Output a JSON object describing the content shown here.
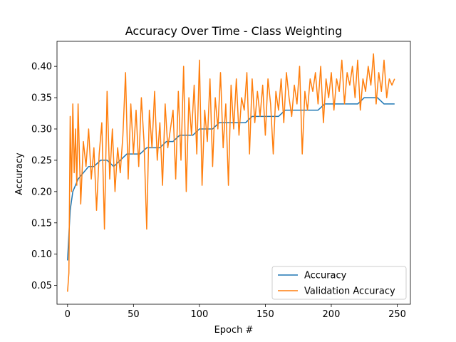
{
  "chart_data": {
    "type": "line",
    "title": "Accuracy Over Time - Class Weighting",
    "xlabel": "Epoch #",
    "ylabel": "Accuracy",
    "xlim": [
      -8,
      260
    ],
    "ylim": [
      0.02,
      0.44
    ],
    "xticks": [
      0,
      50,
      100,
      150,
      200,
      250
    ],
    "yticks": [
      0.05,
      0.1,
      0.15,
      0.2,
      0.25,
      0.3,
      0.35,
      0.4
    ],
    "ytick_labels": [
      "0.05",
      "0.10",
      "0.15",
      "0.20",
      "0.25",
      "0.30",
      "0.35",
      "0.40"
    ],
    "xtick_labels": [
      "0",
      "50",
      "100",
      "150",
      "200",
      "250"
    ],
    "grid": false,
    "legend_position": "lower-right",
    "series": [
      {
        "name": "Accuracy",
        "color": "#1f77b4",
        "x": [
          0,
          2,
          4,
          8,
          12,
          16,
          20,
          25,
          30,
          35,
          40,
          45,
          50,
          55,
          60,
          65,
          70,
          75,
          80,
          85,
          90,
          95,
          100,
          105,
          110,
          115,
          120,
          125,
          130,
          135,
          140,
          145,
          150,
          155,
          160,
          165,
          170,
          175,
          180,
          185,
          190,
          195,
          200,
          205,
          210,
          215,
          220,
          225,
          230,
          235,
          240,
          245,
          248
        ],
        "y": [
          0.09,
          0.17,
          0.2,
          0.22,
          0.23,
          0.24,
          0.24,
          0.25,
          0.25,
          0.24,
          0.25,
          0.26,
          0.26,
          0.26,
          0.27,
          0.27,
          0.27,
          0.28,
          0.28,
          0.29,
          0.29,
          0.29,
          0.3,
          0.3,
          0.3,
          0.31,
          0.31,
          0.31,
          0.31,
          0.31,
          0.32,
          0.32,
          0.32,
          0.32,
          0.32,
          0.33,
          0.33,
          0.33,
          0.33,
          0.33,
          0.33,
          0.34,
          0.34,
          0.34,
          0.34,
          0.34,
          0.34,
          0.35,
          0.35,
          0.35,
          0.34,
          0.34,
          0.34
        ]
      },
      {
        "name": "Validation Accuracy",
        "color": "#ff7f0e",
        "x": [
          0,
          1,
          2,
          3,
          4,
          5,
          6,
          7,
          8,
          10,
          12,
          14,
          16,
          18,
          20,
          22,
          24,
          26,
          28,
          30,
          32,
          34,
          36,
          38,
          40,
          42,
          44,
          46,
          48,
          50,
          52,
          54,
          56,
          58,
          60,
          62,
          64,
          66,
          68,
          70,
          72,
          74,
          76,
          78,
          80,
          82,
          84,
          86,
          88,
          90,
          92,
          94,
          96,
          98,
          100,
          102,
          104,
          106,
          108,
          110,
          112,
          114,
          116,
          118,
          120,
          122,
          124,
          126,
          128,
          130,
          132,
          134,
          136,
          138,
          140,
          142,
          144,
          146,
          148,
          150,
          152,
          154,
          156,
          158,
          160,
          162,
          164,
          166,
          168,
          170,
          172,
          174,
          176,
          178,
          180,
          182,
          184,
          186,
          188,
          190,
          192,
          194,
          196,
          198,
          200,
          202,
          204,
          206,
          208,
          210,
          212,
          214,
          216,
          218,
          220,
          222,
          224,
          226,
          228,
          230,
          232,
          234,
          236,
          238,
          240,
          242,
          244,
          246,
          248
        ],
        "y": [
          0.04,
          0.07,
          0.32,
          0.2,
          0.34,
          0.23,
          0.3,
          0.21,
          0.34,
          0.18,
          0.28,
          0.24,
          0.3,
          0.22,
          0.27,
          0.17,
          0.26,
          0.31,
          0.14,
          0.36,
          0.22,
          0.3,
          0.2,
          0.27,
          0.23,
          0.29,
          0.39,
          0.22,
          0.34,
          0.26,
          0.33,
          0.24,
          0.35,
          0.28,
          0.14,
          0.33,
          0.27,
          0.36,
          0.25,
          0.31,
          0.21,
          0.34,
          0.27,
          0.3,
          0.33,
          0.22,
          0.36,
          0.25,
          0.4,
          0.2,
          0.35,
          0.29,
          0.37,
          0.26,
          0.41,
          0.21,
          0.33,
          0.28,
          0.38,
          0.24,
          0.35,
          0.3,
          0.39,
          0.27,
          0.34,
          0.21,
          0.37,
          0.3,
          0.38,
          0.29,
          0.35,
          0.33,
          0.39,
          0.26,
          0.38,
          0.31,
          0.36,
          0.32,
          0.37,
          0.29,
          0.38,
          0.34,
          0.26,
          0.36,
          0.33,
          0.38,
          0.31,
          0.39,
          0.35,
          0.32,
          0.37,
          0.34,
          0.4,
          0.26,
          0.36,
          0.33,
          0.38,
          0.36,
          0.39,
          0.34,
          0.4,
          0.31,
          0.38,
          0.35,
          0.39,
          0.33,
          0.38,
          0.36,
          0.41,
          0.34,
          0.39,
          0.37,
          0.4,
          0.35,
          0.41,
          0.33,
          0.38,
          0.36,
          0.4,
          0.37,
          0.42,
          0.34,
          0.39,
          0.36,
          0.41,
          0.35,
          0.38,
          0.37,
          0.38
        ]
      }
    ]
  }
}
